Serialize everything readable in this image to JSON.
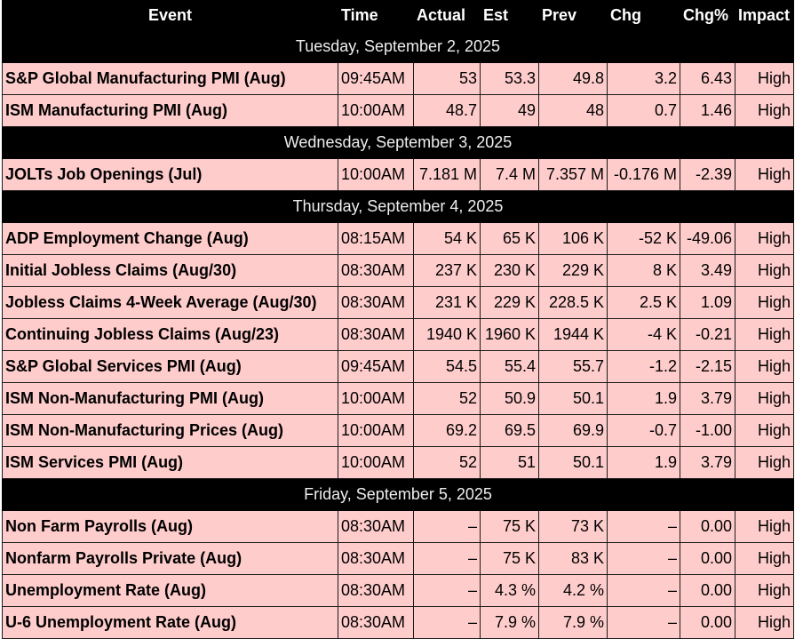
{
  "columns": [
    "Event",
    "Time",
    "Actual",
    "Est",
    "Prev",
    "Chg",
    "Chg%",
    "Impact"
  ],
  "days": [
    {
      "date": "Tuesday, September 2, 2025",
      "rows": [
        {
          "event": "S&P Global Manufacturing PMI (Aug)",
          "time": "09:45AM",
          "actual": "53",
          "est": "53.3",
          "prev": "49.8",
          "chg": "3.2",
          "chg_pct": "6.43",
          "impact": "High"
        },
        {
          "event": "ISM Manufacturing PMI (Aug)",
          "time": "10:00AM",
          "actual": "48.7",
          "est": "49",
          "prev": "48",
          "chg": "0.7",
          "chg_pct": "1.46",
          "impact": "High"
        }
      ]
    },
    {
      "date": "Wednesday, September 3, 2025",
      "rows": [
        {
          "event": "JOLTs Job Openings (Jul)",
          "time": "10:00AM",
          "actual": "7.181 M",
          "est": "7.4 M",
          "prev": "7.357 M",
          "chg": "-0.176 M",
          "chg_pct": "-2.39",
          "impact": "High"
        }
      ]
    },
    {
      "date": "Thursday, September 4, 2025",
      "rows": [
        {
          "event": "ADP Employment Change (Aug)",
          "time": "08:15AM",
          "actual": "54 K",
          "est": "65 K",
          "prev": "106 K",
          "chg": "-52 K",
          "chg_pct": "-49.06",
          "impact": "High"
        },
        {
          "event": "Initial Jobless Claims (Aug/30)",
          "time": "08:30AM",
          "actual": "237 K",
          "est": "230 K",
          "prev": "229 K",
          "chg": "8 K",
          "chg_pct": "3.49",
          "impact": "High"
        },
        {
          "event": "Jobless Claims 4-Week Average (Aug/30)",
          "time": "08:30AM",
          "actual": "231 K",
          "est": "229 K",
          "prev": "228.5 K",
          "chg": "2.5 K",
          "chg_pct": "1.09",
          "impact": "High"
        },
        {
          "event": "Continuing Jobless Claims (Aug/23)",
          "time": "08:30AM",
          "actual": "1940 K",
          "est": "1960 K",
          "prev": "1944 K",
          "chg": "-4 K",
          "chg_pct": "-0.21",
          "impact": "High"
        },
        {
          "event": "S&P Global Services PMI (Aug)",
          "time": "09:45AM",
          "actual": "54.5",
          "est": "55.4",
          "prev": "55.7",
          "chg": "-1.2",
          "chg_pct": "-2.15",
          "impact": "High"
        },
        {
          "event": "ISM Non-Manufacturing PMI (Aug)",
          "time": "10:00AM",
          "actual": "52",
          "est": "50.9",
          "prev": "50.1",
          "chg": "1.9",
          "chg_pct": "3.79",
          "impact": "High"
        },
        {
          "event": "ISM Non-Manufacturing Prices (Aug)",
          "time": "10:00AM",
          "actual": "69.2",
          "est": "69.5",
          "prev": "69.9",
          "chg": "-0.7",
          "chg_pct": "-1.00",
          "impact": "High"
        },
        {
          "event": "ISM Services PMI (Aug)",
          "time": "10:00AM",
          "actual": "52",
          "est": "51",
          "prev": "50.1",
          "chg": "1.9",
          "chg_pct": "3.79",
          "impact": "High"
        }
      ]
    },
    {
      "date": "Friday, September 5, 2025",
      "rows": [
        {
          "event": "Non Farm Payrolls (Aug)",
          "time": "08:30AM",
          "actual": "–",
          "est": "75 K",
          "prev": "73 K",
          "chg": "–",
          "chg_pct": "0.00",
          "impact": "High"
        },
        {
          "event": "Nonfarm Payrolls Private (Aug)",
          "time": "08:30AM",
          "actual": "–",
          "est": "75 K",
          "prev": "83 K",
          "chg": "–",
          "chg_pct": "0.00",
          "impact": "High"
        },
        {
          "event": "Unemployment Rate (Aug)",
          "time": "08:30AM",
          "actual": "–",
          "est": "4.3 %",
          "prev": "4.2 %",
          "chg": "–",
          "chg_pct": "0.00",
          "impact": "High"
        },
        {
          "event": "U-6 Unemployment Rate (Aug)",
          "time": "08:30AM",
          "actual": "–",
          "est": "7.9 %",
          "prev": "7.9 %",
          "chg": "–",
          "chg_pct": "0.00",
          "impact": "High"
        }
      ]
    }
  ]
}
